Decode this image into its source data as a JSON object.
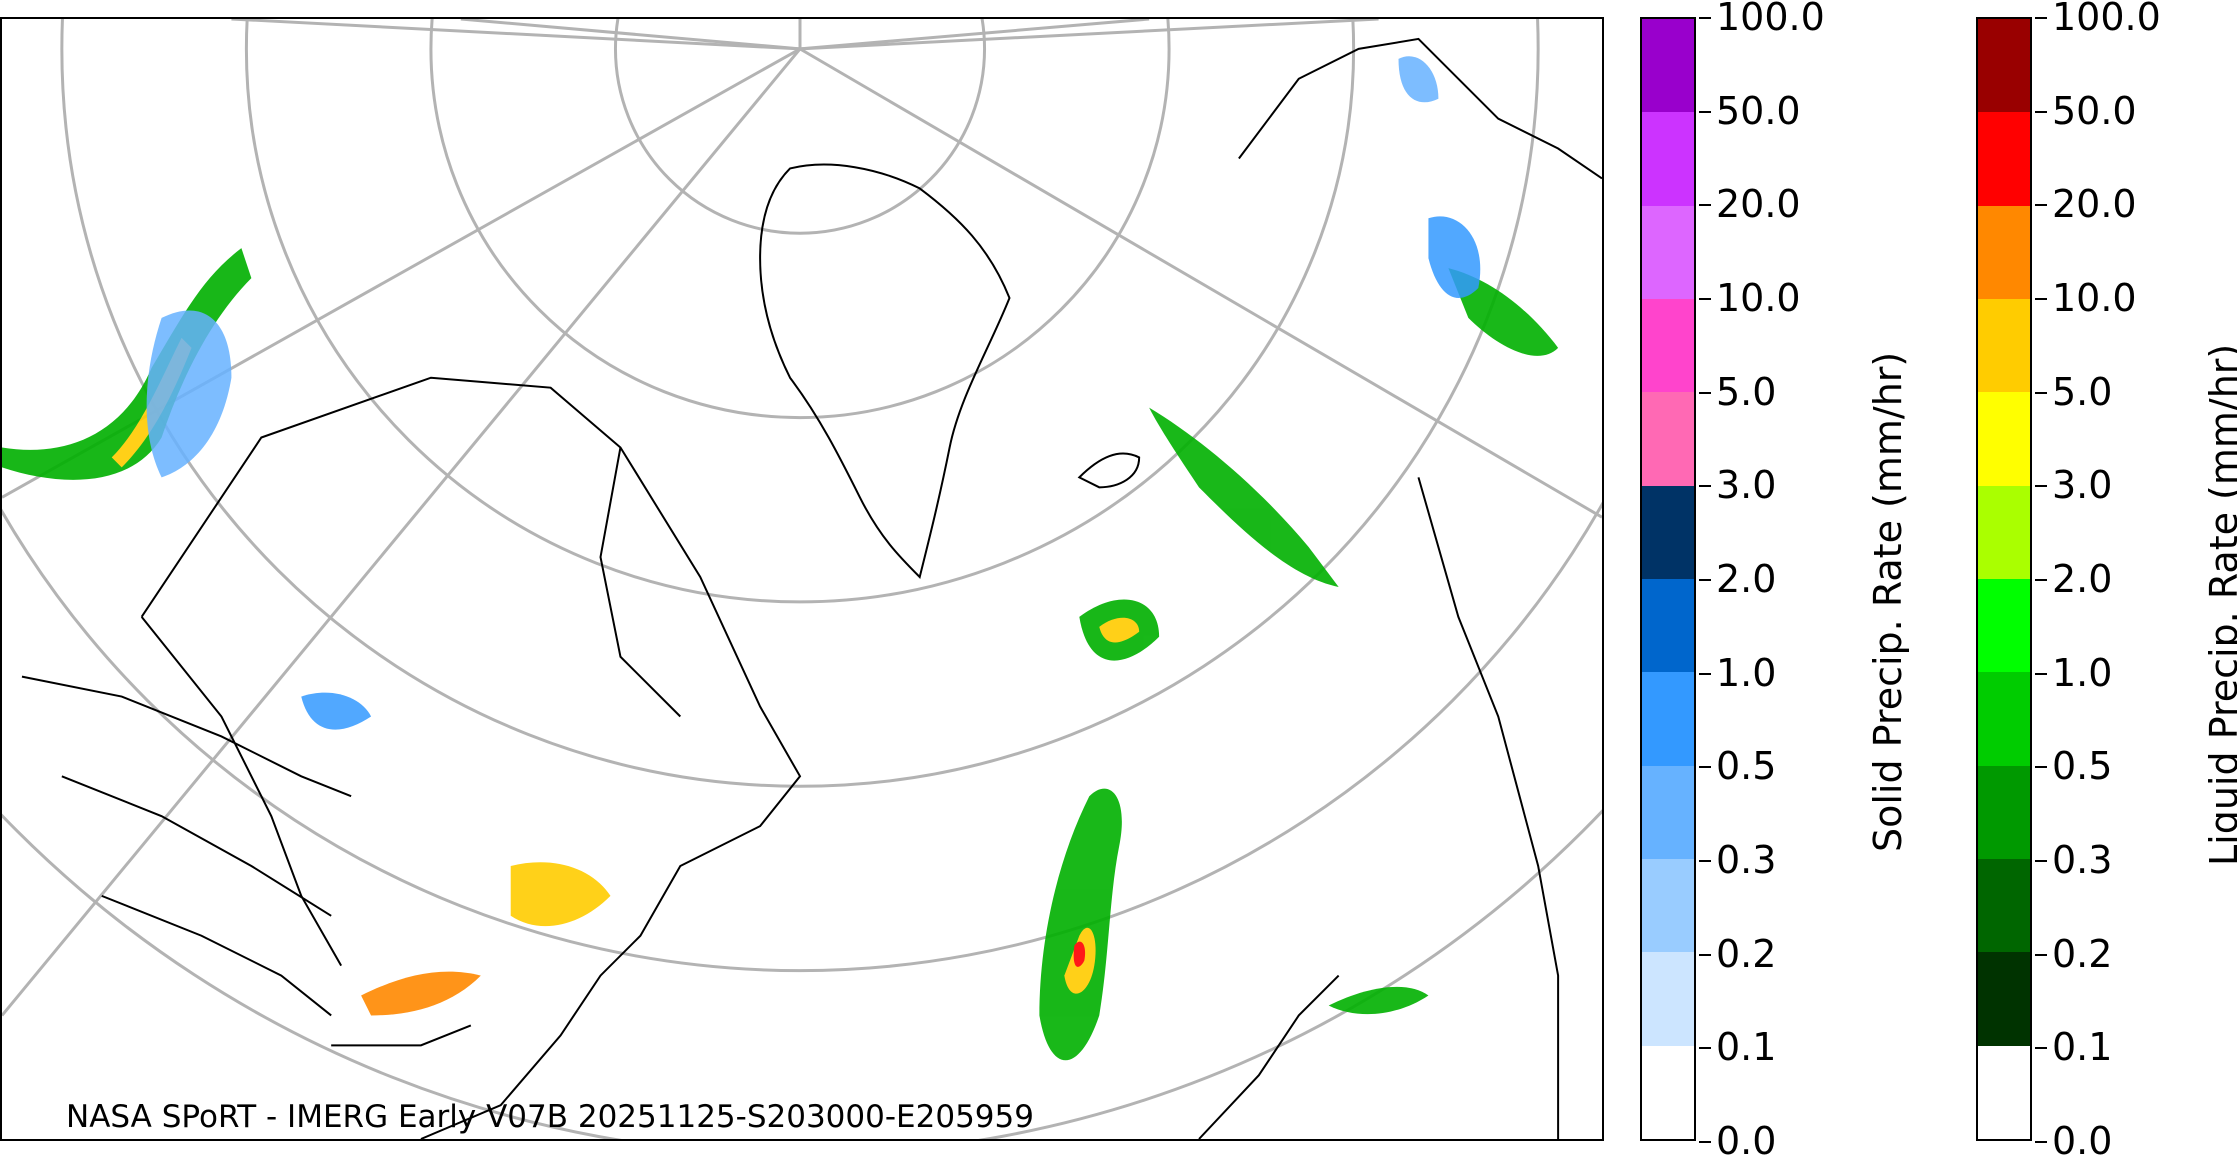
{
  "map": {
    "credit": "NASA SPoRT - IMERG Early V07B 20251125-S203000-E205959"
  },
  "colorbars": {
    "ticks": [
      "0.0",
      "0.1",
      "0.2",
      "0.3",
      "0.5",
      "1.0",
      "2.0",
      "3.0",
      "5.0",
      "10.0",
      "20.0",
      "50.0",
      "100.0"
    ],
    "solid": {
      "label": "Solid Precip. Rate (mm/hr)",
      "colors": [
        "#ffffff",
        "#cce5ff",
        "#99ccff",
        "#66b2ff",
        "#3399ff",
        "#0066cc",
        "#003366",
        "#ff69b4",
        "#ff44cc",
        "#dd66ff",
        "#cc33ff",
        "#9900cc"
      ]
    },
    "liquid": {
      "label": "Liquid Precip. Rate (mm/hr)",
      "colors": [
        "#ffffff",
        "#003300",
        "#006600",
        "#009900",
        "#00cc00",
        "#00ff00",
        "#aaff00",
        "#ffff00",
        "#ffcc00",
        "#ff8800",
        "#ff0000",
        "#990000",
        "#440000"
      ]
    }
  }
}
